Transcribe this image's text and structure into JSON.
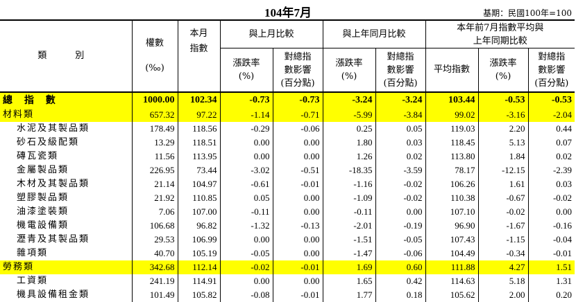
{
  "title": "104年7月",
  "base_period": "基期：民國100年=100",
  "header": {
    "category": "類　別",
    "weight_label": "權數",
    "weight_unit": "(‰)",
    "current_index_label_1": "本月",
    "current_index_label_2": "指數",
    "vs_prev_month": "與上月比較",
    "vs_same_month_last_year": "與上年同月比較",
    "ytd_line1": "本年前7月指數平均與",
    "ytd_line2": "上年同期比較",
    "change_rate_1": "漲跌率",
    "change_rate_2": "(%)",
    "impact_1": "對總指",
    "impact_2": "數影響",
    "impact_3": "(百分點)",
    "avg_index": "平均指數"
  },
  "rows": [
    {
      "type": "total",
      "name": "總 指 數",
      "weight": "1000.00",
      "index": "102.34",
      "mom_rate": "-0.73",
      "mom_impact": "-0.73",
      "yoy_rate": "-3.24",
      "yoy_impact": "-3.24",
      "avg": "103.44",
      "ytd_rate": "-0.53",
      "ytd_impact": "-0.53"
    },
    {
      "type": "cat",
      "name": "材料類",
      "weight": "657.32",
      "index": "97.22",
      "mom_rate": "-1.14",
      "mom_impact": "-0.71",
      "yoy_rate": "-5.99",
      "yoy_impact": "-3.84",
      "avg": "99.02",
      "ytd_rate": "-3.16",
      "ytd_impact": "-2.04"
    },
    {
      "type": "sub",
      "name": "水泥及其製品類",
      "weight": "178.49",
      "index": "118.56",
      "mom_rate": "-0.29",
      "mom_impact": "-0.06",
      "yoy_rate": "0.25",
      "yoy_impact": "0.05",
      "avg": "119.03",
      "ytd_rate": "2.20",
      "ytd_impact": "0.44"
    },
    {
      "type": "sub",
      "name": "砂石及級配類",
      "weight": "13.29",
      "index": "118.51",
      "mom_rate": "0.00",
      "mom_impact": "0.00",
      "yoy_rate": "1.80",
      "yoy_impact": "0.03",
      "avg": "118.45",
      "ytd_rate": "5.13",
      "ytd_impact": "0.07"
    },
    {
      "type": "sub",
      "name": "磚瓦瓷類",
      "weight": "11.56",
      "index": "113.95",
      "mom_rate": "0.00",
      "mom_impact": "0.00",
      "yoy_rate": "1.26",
      "yoy_impact": "0.02",
      "avg": "113.80",
      "ytd_rate": "1.84",
      "ytd_impact": "0.02"
    },
    {
      "type": "sub",
      "name": "金屬製品類",
      "weight": "226.95",
      "index": "73.44",
      "mom_rate": "-3.02",
      "mom_impact": "-0.51",
      "yoy_rate": "-18.35",
      "yoy_impact": "-3.59",
      "avg": "78.17",
      "ytd_rate": "-12.15",
      "ytd_impact": "-2.39"
    },
    {
      "type": "sub",
      "name": "木材及其製品類",
      "weight": "21.14",
      "index": "104.97",
      "mom_rate": "-0.61",
      "mom_impact": "-0.01",
      "yoy_rate": "-1.16",
      "yoy_impact": "-0.02",
      "avg": "106.26",
      "ytd_rate": "1.61",
      "ytd_impact": "0.03"
    },
    {
      "type": "sub",
      "name": "塑膠製品類",
      "weight": "21.92",
      "index": "110.85",
      "mom_rate": "0.05",
      "mom_impact": "0.00",
      "yoy_rate": "-1.09",
      "yoy_impact": "-0.02",
      "avg": "110.38",
      "ytd_rate": "-0.67",
      "ytd_impact": "-0.02"
    },
    {
      "type": "sub",
      "name": "油漆塗裝類",
      "weight": "7.06",
      "index": "107.00",
      "mom_rate": "-0.11",
      "mom_impact": "0.00",
      "yoy_rate": "-0.11",
      "yoy_impact": "0.00",
      "avg": "107.10",
      "ytd_rate": "-0.02",
      "ytd_impact": "0.00"
    },
    {
      "type": "sub",
      "name": "機電設備類",
      "weight": "106.68",
      "index": "96.82",
      "mom_rate": "-1.32",
      "mom_impact": "-0.13",
      "yoy_rate": "-2.01",
      "yoy_impact": "-0.19",
      "avg": "96.90",
      "ytd_rate": "-1.67",
      "ytd_impact": "-0.16"
    },
    {
      "type": "sub",
      "name": "瀝青及其製品類",
      "weight": "29.53",
      "index": "106.99",
      "mom_rate": "0.00",
      "mom_impact": "0.00",
      "yoy_rate": "-1.51",
      "yoy_impact": "-0.05",
      "avg": "107.43",
      "ytd_rate": "-1.15",
      "ytd_impact": "-0.04"
    },
    {
      "type": "sub",
      "name": "雜項類",
      "weight": "40.70",
      "index": "105.19",
      "mom_rate": "-0.05",
      "mom_impact": "0.00",
      "yoy_rate": "-1.47",
      "yoy_impact": "-0.06",
      "avg": "104.49",
      "ytd_rate": "-0.34",
      "ytd_impact": "-0.01"
    },
    {
      "type": "cat",
      "name": "勞務類",
      "weight": "342.68",
      "index": "112.14",
      "mom_rate": "-0.02",
      "mom_impact": "-0.01",
      "yoy_rate": "1.69",
      "yoy_impact": "0.60",
      "avg": "111.88",
      "ytd_rate": "4.27",
      "ytd_impact": "1.51"
    },
    {
      "type": "sub",
      "name": "工資類",
      "weight": "241.19",
      "index": "114.91",
      "mom_rate": "0.00",
      "mom_impact": "0.00",
      "yoy_rate": "1.65",
      "yoy_impact": "0.42",
      "avg": "114.63",
      "ytd_rate": "5.18",
      "ytd_impact": "1.31"
    },
    {
      "type": "sub",
      "name": "機具設備租金類",
      "weight": "101.49",
      "index": "105.82",
      "mom_rate": "-0.08",
      "mom_impact": "-0.01",
      "yoy_rate": "1.77",
      "yoy_impact": "0.18",
      "avg": "105.62",
      "ytd_rate": "2.00",
      "ytd_impact": "0.20"
    }
  ]
}
